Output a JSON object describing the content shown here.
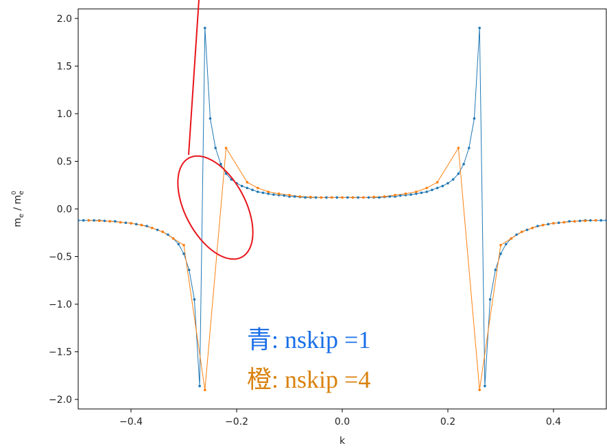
{
  "chart_data": {
    "type": "line",
    "xlabel": "k",
    "ylabel_main": "m",
    "ylabel_sub": "e",
    "ylabel_sep": " / m",
    "ylabel_sup": "0",
    "xlim": [
      -0.5,
      0.5
    ],
    "ylim": [
      -2.1,
      2.1
    ],
    "xticks": [
      -0.4,
      -0.2,
      0.0,
      0.2,
      0.4
    ],
    "xtick_labels": [
      "−0.4",
      "−0.2",
      "0.0",
      "0.2",
      "0.4"
    ],
    "yticks": [
      2.0,
      1.5,
      1.0,
      0.5,
      0.0,
      -0.5,
      -1.0,
      -1.5,
      -2.0
    ],
    "ytick_labels": [
      "2.0",
      "1.5",
      "1.0",
      "0.5",
      "0.0",
      "−0.5",
      "−1.0",
      "−1.5",
      "−2.0"
    ],
    "grid": false,
    "colors": {
      "blue": "#1f77b4",
      "orange": "#ff7f0e",
      "annotation": "#e8141b",
      "note_blue": "#1a6fe8",
      "note_orange": "#d9820f"
    },
    "series": [
      {
        "key": "blue",
        "x": [
          -0.5,
          -0.49,
          -0.48,
          -0.47,
          -0.46,
          -0.45,
          -0.44,
          -0.43,
          -0.42,
          -0.41,
          -0.4,
          -0.39,
          -0.38,
          -0.37,
          -0.36,
          -0.35,
          -0.34,
          -0.33,
          -0.32,
          -0.31,
          -0.3,
          -0.29,
          -0.28,
          -0.27,
          -0.26,
          -0.25,
          -0.24,
          -0.23,
          -0.22,
          -0.21,
          -0.2,
          -0.19,
          -0.18,
          -0.17,
          -0.16,
          -0.15,
          -0.14,
          -0.13,
          -0.12,
          -0.11,
          -0.1,
          -0.09,
          -0.08,
          -0.07,
          -0.06,
          -0.05,
          -0.04,
          -0.03,
          -0.02,
          -0.01,
          0.0,
          0.01,
          0.02,
          0.03,
          0.04,
          0.05,
          0.06,
          0.07,
          0.08,
          0.09,
          0.1,
          0.11,
          0.12,
          0.13,
          0.14,
          0.15,
          0.16,
          0.17,
          0.18,
          0.19,
          0.2,
          0.21,
          0.22,
          0.23,
          0.24,
          0.25,
          0.26,
          0.27,
          0.28,
          0.29,
          0.3,
          0.31,
          0.32,
          0.33,
          0.34,
          0.35,
          0.36,
          0.37,
          0.38,
          0.39,
          0.4,
          0.41,
          0.42,
          0.43,
          0.44,
          0.45,
          0.46,
          0.47,
          0.48,
          0.49,
          0.5
        ],
        "y": [
          -0.12,
          -0.12,
          -0.12,
          -0.12,
          -0.12,
          -0.125,
          -0.13,
          -0.13,
          -0.14,
          -0.145,
          -0.15,
          -0.16,
          -0.17,
          -0.18,
          -0.2,
          -0.22,
          -0.24,
          -0.27,
          -0.31,
          -0.37,
          -0.47,
          -0.64,
          -0.95,
          -1.86,
          1.9,
          0.95,
          0.64,
          0.47,
          0.37,
          0.31,
          0.27,
          0.24,
          0.22,
          0.2,
          0.18,
          0.17,
          0.16,
          0.15,
          0.145,
          0.14,
          0.13,
          0.13,
          0.125,
          0.12,
          0.12,
          0.12,
          0.12,
          0.12,
          0.12,
          0.12,
          0.12,
          0.12,
          0.12,
          0.12,
          0.12,
          0.12,
          0.12,
          0.12,
          0.125,
          0.13,
          0.13,
          0.14,
          0.145,
          0.15,
          0.16,
          0.17,
          0.18,
          0.2,
          0.22,
          0.24,
          0.27,
          0.31,
          0.37,
          0.47,
          0.64,
          0.95,
          1.9,
          -1.86,
          -0.95,
          -0.64,
          -0.47,
          -0.37,
          -0.31,
          -0.27,
          -0.24,
          -0.22,
          -0.2,
          -0.18,
          -0.17,
          -0.16,
          -0.15,
          -0.145,
          -0.14,
          -0.13,
          -0.13,
          -0.125,
          -0.12,
          -0.12,
          -0.12,
          -0.12,
          -0.12
        ],
        "x_shift": [
          0,
          0,
          0,
          0,
          0,
          0,
          0,
          0,
          0,
          0,
          0,
          0,
          0,
          0,
          0,
          0,
          0,
          0,
          0,
          0,
          0,
          0,
          0,
          0,
          0,
          0,
          0,
          0,
          0,
          0,
          0,
          0,
          0,
          0,
          0,
          0,
          0,
          0,
          0,
          0,
          0,
          0,
          0,
          0,
          0,
          0,
          0,
          0,
          0,
          0,
          0,
          0,
          0,
          0,
          0,
          0,
          0,
          0,
          0,
          0,
          0,
          0,
          0,
          0,
          0,
          0,
          0,
          0,
          0,
          0,
          0,
          0,
          0,
          0,
          0,
          0,
          0,
          0,
          0,
          0,
          0,
          0,
          0,
          0,
          0,
          0,
          0,
          0,
          0,
          0,
          0,
          0,
          0,
          0,
          0,
          0,
          0,
          0,
          0,
          0,
          0
        ]
      },
      {
        "key": "orange",
        "x": [
          -0.48,
          -0.46,
          -0.44,
          -0.42,
          -0.4,
          -0.38,
          -0.36,
          -0.34,
          -0.32,
          -0.3,
          -0.26,
          -0.22,
          -0.18,
          -0.16,
          -0.14,
          -0.12,
          -0.1,
          -0.08,
          -0.06,
          -0.04,
          -0.02,
          0.0,
          0.02,
          0.04,
          0.06,
          0.08,
          0.1,
          0.12,
          0.14,
          0.16,
          0.18,
          0.22,
          0.26,
          0.3,
          0.32,
          0.34,
          0.36,
          0.38,
          0.4,
          0.42,
          0.44,
          0.46,
          0.48
        ],
        "y": [
          -0.12,
          -0.125,
          -0.13,
          -0.14,
          -0.15,
          -0.17,
          -0.2,
          -0.24,
          -0.31,
          -0.38,
          -1.9,
          0.64,
          0.28,
          0.22,
          0.18,
          0.16,
          0.145,
          0.13,
          0.125,
          0.12,
          0.12,
          0.12,
          0.12,
          0.12,
          0.125,
          0.13,
          0.145,
          0.16,
          0.18,
          0.22,
          0.28,
          0.64,
          -1.9,
          -0.38,
          -0.31,
          -0.24,
          -0.2,
          -0.17,
          -0.15,
          -0.14,
          -0.13,
          -0.125,
          -0.12
        ]
      }
    ],
    "annotation": {
      "note_line1_prefix": "青",
      "note_line1_text": ": nskip =1",
      "note_line2_prefix": "橙",
      "note_line2_text": ": nskip =4"
    }
  }
}
